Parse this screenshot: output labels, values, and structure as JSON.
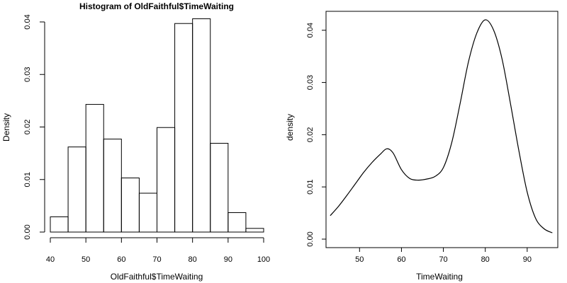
{
  "chart_data": [
    {
      "type": "bar",
      "title": "Histogram of OldFaithful$TimeWaiting",
      "xlabel": "OldFaithful$TimeWaiting",
      "ylabel": "Density",
      "bins": [
        {
          "start": 40,
          "end": 45,
          "value": 0.0029
        },
        {
          "start": 45,
          "end": 50,
          "value": 0.0162
        },
        {
          "start": 50,
          "end": 55,
          "value": 0.0243
        },
        {
          "start": 55,
          "end": 60,
          "value": 0.0177
        },
        {
          "start": 60,
          "end": 65,
          "value": 0.0103
        },
        {
          "start": 65,
          "end": 70,
          "value": 0.0074
        },
        {
          "start": 70,
          "end": 75,
          "value": 0.0199
        },
        {
          "start": 75,
          "end": 80,
          "value": 0.0397
        },
        {
          "start": 80,
          "end": 85,
          "value": 0.0406
        },
        {
          "start": 85,
          "end": 90,
          "value": 0.0169
        },
        {
          "start": 90,
          "end": 95,
          "value": 0.0037
        },
        {
          "start": 95,
          "end": 100,
          "value": 0.0007
        }
      ],
      "xlim": [
        40,
        100
      ],
      "ylim": [
        0,
        0.04
      ],
      "xticks": [
        "40",
        "50",
        "60",
        "70",
        "80",
        "90",
        "100"
      ],
      "yticks": [
        "0.00",
        "0.01",
        "0.02",
        "0.03",
        "0.04"
      ],
      "grid": false,
      "box": false
    },
    {
      "type": "line",
      "title": "",
      "xlabel": "TimeWaiting",
      "ylabel": "density",
      "series": [
        {
          "x": [
            43,
            45,
            47,
            49,
            51,
            53,
            55,
            56.5,
            58,
            60,
            62,
            64,
            66,
            68,
            70,
            72,
            74,
            76,
            78,
            80,
            82,
            84,
            86,
            88,
            90,
            92,
            94,
            96
          ],
          "y": [
            0.0045,
            0.0063,
            0.0084,
            0.0106,
            0.0128,
            0.0147,
            0.0163,
            0.0173,
            0.0165,
            0.0133,
            0.0116,
            0.0113,
            0.0115,
            0.012,
            0.0137,
            0.0185,
            0.026,
            0.034,
            0.0395,
            0.042,
            0.04,
            0.0345,
            0.026,
            0.017,
            0.009,
            0.004,
            0.002,
            0.0012
          ]
        }
      ],
      "xlim": [
        42,
        97.3
      ],
      "ylim": [
        0,
        0.042
      ],
      "xticks": [
        "50",
        "60",
        "70",
        "80",
        "90"
      ],
      "yticks": [
        "0.00",
        "0.01",
        "0.02",
        "0.03",
        "0.04"
      ],
      "grid": false,
      "box": true
    }
  ]
}
